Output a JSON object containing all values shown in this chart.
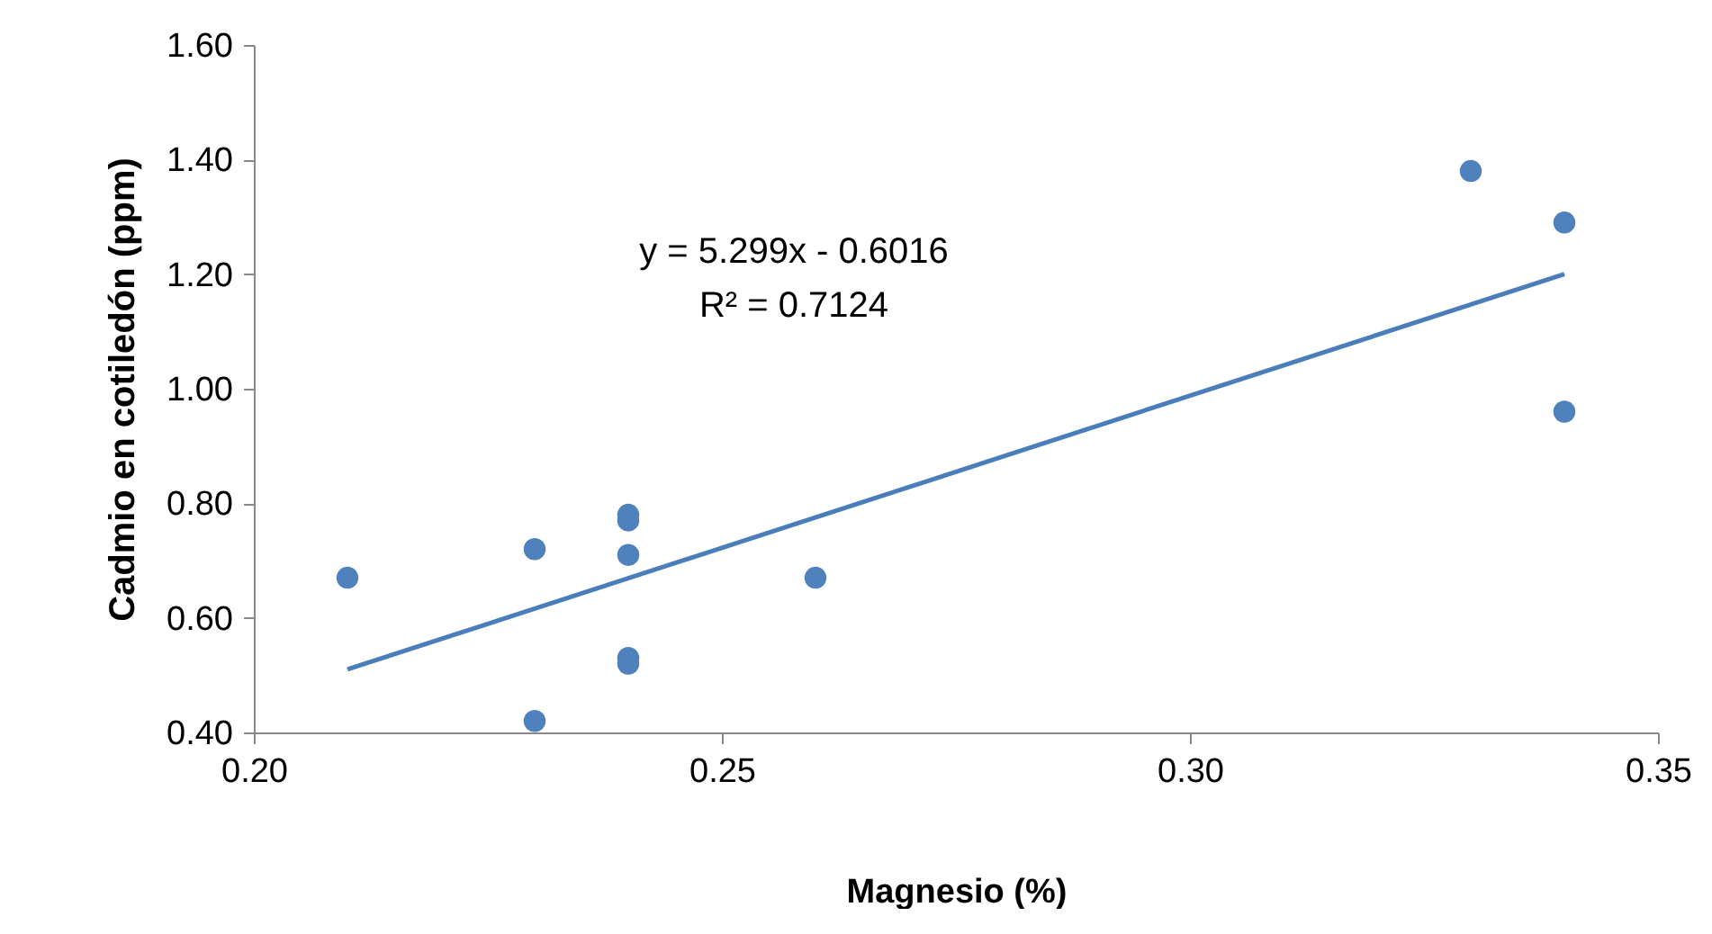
{
  "chart_data": {
    "type": "scatter",
    "xlabel": "Magnesio (%)",
    "ylabel": "Cadmio en cotiledón (ppm)",
    "xlim": [
      0.2,
      0.35
    ],
    "xticks": [
      {
        "value": 0.2,
        "label": "0.20"
      },
      {
        "value": 0.25,
        "label": "0.25"
      },
      {
        "value": 0.3,
        "label": "0.30"
      },
      {
        "value": 0.35,
        "label": "0.35"
      }
    ],
    "ylim": [
      0.4,
      1.6
    ],
    "yticks": [
      {
        "value": 0.4,
        "label": "0.40"
      },
      {
        "value": 0.6,
        "label": "0.60"
      },
      {
        "value": 0.8,
        "label": "0.80"
      },
      {
        "value": 1.0,
        "label": "1.00"
      },
      {
        "value": 1.2,
        "label": "1.20"
      },
      {
        "value": 1.4,
        "label": "1.40"
      },
      {
        "value": 1.6,
        "label": "1.60"
      }
    ],
    "grid": false,
    "marker": "circle",
    "annotations": [
      "y = 5.299x - 0.6016\nR² = 0.7124"
    ],
    "series": [
      {
        "type": "scatter",
        "color": "#4f81bd",
        "x": [
          0.21,
          0.23,
          0.23,
          0.24,
          0.24,
          0.24,
          0.24,
          0.24,
          0.26,
          0.33,
          0.34,
          0.34
        ],
        "values": [
          0.67,
          0.72,
          0.42,
          0.78,
          0.77,
          0.71,
          0.53,
          0.52,
          0.67,
          1.38,
          1.29,
          0.96
        ]
      },
      {
        "type": "line",
        "color": "#4a7ebb",
        "line_style": "solid",
        "marker": "none",
        "x": [
          0.21,
          0.34
        ],
        "values": [
          0.51,
          1.2
        ]
      }
    ]
  }
}
